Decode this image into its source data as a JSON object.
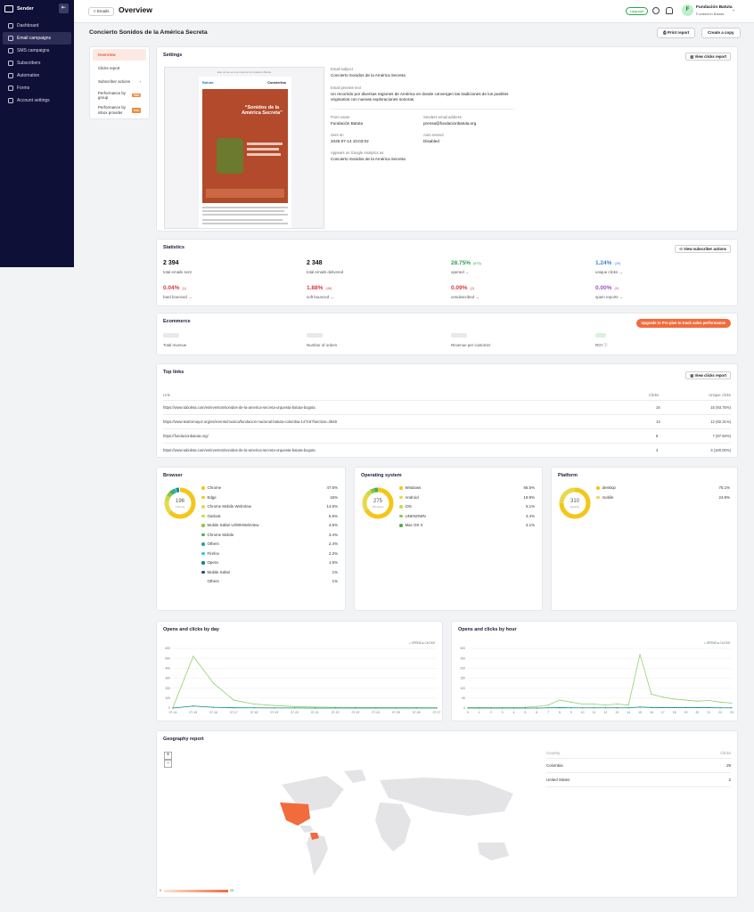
{
  "sidebar": {
    "brand": "Sender",
    "collapse_icon": "collapse-icon",
    "items": [
      {
        "label": "Dashboard",
        "icon": "dashboard-icon"
      },
      {
        "label": "Email campaigns",
        "icon": "email-icon"
      },
      {
        "label": "SMS campaigns",
        "icon": "sms-icon"
      },
      {
        "label": "Subscribers",
        "icon": "subscribers-icon"
      },
      {
        "label": "Automation",
        "icon": "automation-icon"
      },
      {
        "label": "Forms",
        "icon": "forms-icon"
      },
      {
        "label": "Account settings",
        "icon": "settings-icon"
      }
    ]
  },
  "topbar": {
    "back": "< Emails",
    "title": "Overview",
    "upgrade": "Upgrade",
    "avatar_letter": "F",
    "account_name": "Fundación Batuta",
    "account_sub": "Fundación Batuta"
  },
  "campaign": {
    "title": "Concierto Sonidos de la América Secreta",
    "print": "Print report",
    "copy": "Create a copy"
  },
  "subnav": {
    "items": [
      "Overview",
      "Clicks report",
      "Subscriber actions",
      "Performance by group",
      "Performance by inbox provider"
    ],
    "tag": "PRO"
  },
  "settings": {
    "title": "Settings",
    "view_clicks": "View clicks report",
    "preview": {
      "notice": "Este correo es una copia de la Fundación Batuta",
      "logo": "Batuta",
      "header": "Conciertos",
      "poster_title": "“Sonidos de la América Secreta”"
    },
    "subject_label": "Email subject",
    "subject": "Concierto Sonidos de la América Secreta",
    "preview_label": "Email preview text",
    "preview_text": "Un recorrido por diversas regiones de América en donde convergen las tradiciones de los pueblos originarios con nuevas exploraciones sonoras",
    "from_label": "From name",
    "from": "Fundación Batuta",
    "sender_label": "Senders email address",
    "sender": "prensa@fundacionbatuta.org",
    "sent_label": "Sent on",
    "sent": "2025-07-14 10:03:02",
    "resend_label": "Auto resend",
    "resend": "Disabled",
    "ga_label": "Appears on Google Analytics as",
    "ga": "Concierto Sonidos de la América Secreta"
  },
  "statistics": {
    "title": "Statistics",
    "button": "View subscriber actions",
    "total_sent": "2 394",
    "total_sent_label": "total emails sent",
    "delivered": "2 348",
    "delivered_label": "total emails delivered",
    "opened_pct": "28.75%",
    "opened_n": "(675)",
    "opened_label": "opened →",
    "unique_pct": "1.24%",
    "unique_n": "(29)",
    "unique_label": "unique clicks →",
    "hard_pct": "0.04%",
    "hard_n": "(1)",
    "hard_label": "hard bounced →",
    "soft_pct": "1.88%",
    "soft_n": "(45)",
    "soft_label": "soft bounced →",
    "unsub_pct": "0.09%",
    "unsub_n": "(2)",
    "unsub_label": "unsubscribed →",
    "spam_pct": "0.00%",
    "spam_n": "(0)",
    "spam_label": "spam reports →"
  },
  "ecommerce": {
    "title": "Ecommerce",
    "upgrade": "Upgrade to Pro plan to track sales performance",
    "labels": [
      "Total revenue",
      "Number of orders",
      "Revenue per customer",
      "ROI ⓘ"
    ]
  },
  "top_links": {
    "title": "Top links",
    "button": "View clicks report",
    "headers": [
      "Link",
      "Clicks",
      "Unique clicks"
    ],
    "rows": [
      {
        "link": "https://www.tuboleta.com/es/eventos/sonidos-de-la-america-secreta-orquesta-batuta-bogota",
        "clicks": "16",
        "unique": "15 (93.75%)"
      },
      {
        "link": "https://www.teatromayor.org/es/evento/musica/fundacion-nacional-batuta-colombia-14716?function=3548",
        "clicks": "13",
        "unique": "12 (92.31%)"
      },
      {
        "link": "https://fundacionbatuta.org/",
        "clicks": "8",
        "unique": "7 (87.50%)"
      },
      {
        "link": "https://www.tuboleta.com/es/eventos/sonidos-de-la-america-secreta-orquesta-batuta-bogota",
        "clicks": "3",
        "unique": "3 (100.00%)"
      }
    ]
  },
  "browser": {
    "title": "Browser",
    "total": "196",
    "center_label": "Chrome",
    "items": [
      {
        "name": "Chrome",
        "value": "47.5%",
        "color": "#f5c518"
      },
      {
        "name": "Edge",
        "value": "16%",
        "color": "#f5c518"
      },
      {
        "name": "Chrome Mobile WebView",
        "value": "14.5%",
        "color": "#e8d84a"
      },
      {
        "name": "Outlook",
        "value": "5.5%",
        "color": "#c8d94a"
      },
      {
        "name": "Mobile Safari UI/WKWebView",
        "value": "4.5%",
        "color": "#8cc63f"
      },
      {
        "name": "Chrome Mobile",
        "value": "3.4%",
        "color": "#4caf50"
      },
      {
        "name": "Others",
        "value": "2.4%",
        "color": "#26a69a"
      },
      {
        "name": "Firefox",
        "value": "2.2%",
        "color": "#26c6da"
      },
      {
        "name": "Opera",
        "value": "1.5%",
        "color": "#00897b"
      },
      {
        "name": "Mobile Safari",
        "value": "1%",
        "color": "#1e4b7a"
      },
      {
        "name": "Others",
        "value": "1%",
        "color": ""
      }
    ]
  },
  "os": {
    "title": "Operating system",
    "total": "275",
    "center_label": "Windows",
    "items": [
      {
        "name": "Windows",
        "value": "66.5%",
        "color": "#f5c518"
      },
      {
        "name": "Android",
        "value": "18.9%",
        "color": "#e8d84a"
      },
      {
        "name": "iOS",
        "value": "6.1%",
        "color": "#c8d94a"
      },
      {
        "name": "UNKNOWN",
        "value": "4.4%",
        "color": "#8cc63f"
      },
      {
        "name": "Mac OS X",
        "value": "4.1%",
        "color": "#4caf50"
      }
    ]
  },
  "platform": {
    "title": "Platform",
    "total": "310",
    "center_label": "desktop",
    "items": [
      {
        "name": "desktop",
        "value": "75.1%",
        "color": "#f5c518"
      },
      {
        "name": "mobile",
        "value": "24.9%",
        "color": "#e8d84a"
      }
    ]
  },
  "by_day": {
    "title": "Opens and clicks by day",
    "legend_opens": "OPENS",
    "legend_clicks": "CLICKS",
    "chart_data": {
      "type": "line",
      "x": [
        "07-14",
        "07-15",
        "07-16",
        "07-17",
        "07-18",
        "07-19",
        "07-20",
        "07-21",
        "07-22",
        "07-23",
        "07-24",
        "07-25",
        "07-26",
        "07-27"
      ],
      "series": [
        {
          "name": "OPENS",
          "values": [
            5,
            520,
            250,
            80,
            40,
            25,
            15,
            10,
            8,
            6,
            5,
            4,
            4,
            3
          ]
        },
        {
          "name": "CLICKS",
          "values": [
            0,
            20,
            8,
            3,
            2,
            1,
            1,
            0,
            0,
            0,
            0,
            0,
            0,
            0
          ]
        }
      ],
      "ylim": [
        0,
        600
      ],
      "yticks": [
        0,
        100,
        200,
        300,
        400,
        500,
        600
      ]
    }
  },
  "by_hour": {
    "title": "Opens and clicks by hour",
    "legend_opens": "OPENS",
    "legend_clicks": "CLICKS",
    "chart_data": {
      "type": "line",
      "x": [
        "0",
        "1",
        "2",
        "3",
        "4",
        "5",
        "6",
        "7",
        "8",
        "9",
        "10",
        "11",
        "12",
        "13",
        "14",
        "15",
        "16",
        "17",
        "18",
        "19",
        "20",
        "21",
        "22",
        "23"
      ],
      "series": [
        {
          "name": "OPENS",
          "values": [
            2,
            3,
            2,
            2,
            2,
            4,
            8,
            15,
            40,
            30,
            20,
            20,
            15,
            20,
            15,
            270,
            70,
            55,
            45,
            40,
            35,
            38,
            30,
            25
          ]
        },
        {
          "name": "CLICKS",
          "values": [
            0,
            0,
            0,
            0,
            0,
            0,
            0,
            1,
            2,
            1,
            1,
            1,
            1,
            1,
            1,
            5,
            3,
            2,
            2,
            2,
            2,
            2,
            1,
            1
          ]
        }
      ],
      "ylim": [
        0,
        300
      ],
      "yticks": [
        0,
        50,
        100,
        150,
        200,
        250,
        300
      ]
    }
  },
  "geography": {
    "title": "Geography report",
    "zoom_in": "+",
    "zoom_out": "−",
    "col_country": "Country",
    "col_clicks": "Clicks",
    "rows": [
      {
        "country": "Colombia",
        "clicks": "29"
      },
      {
        "country": "United States",
        "clicks": "2"
      }
    ],
    "scale_min": "0",
    "scale_max": "29",
    "accent": "#f26b3a"
  }
}
